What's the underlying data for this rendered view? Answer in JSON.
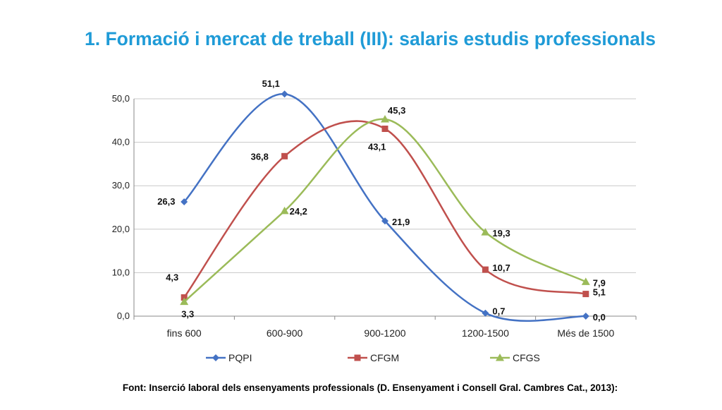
{
  "title": "1. Formació i mercat de treball (III): salaris estudis professionals",
  "source": "Font: Inserció laboral dels ensenyaments professionals (D. Ensenyament i Consell Gral. Cambres Cat., 2013):",
  "colors": {
    "title": "#1f9bd7",
    "PQPI": "#4472c4",
    "CFGM": "#c0504d",
    "CFGS": "#9bbb59",
    "grid": "#c8c8c8"
  },
  "chart_data": {
    "type": "line",
    "categories": [
      "fins 600",
      "600-900",
      "900-1200",
      "1200-1500",
      "Més de 1500"
    ],
    "ylim": [
      0,
      50
    ],
    "yticks": [
      "0,0",
      "10,0",
      "20,0",
      "30,0",
      "40,0",
      "50,0"
    ],
    "grid": true,
    "smooth": true,
    "legend": "bottom",
    "series": [
      {
        "name": "PQPI",
        "marker": "diamond",
        "values": [
          26.3,
          51.1,
          21.9,
          0.7,
          0.0
        ],
        "labels": [
          "26,3",
          "51,1",
          "21,9",
          "0,7",
          "0,0"
        ]
      },
      {
        "name": "CFGM",
        "marker": "square",
        "values": [
          4.3,
          36.8,
          43.1,
          10.7,
          5.1
        ],
        "labels": [
          "4,3",
          "36,8",
          "43,1",
          "10,7",
          "5,1"
        ]
      },
      {
        "name": "CFGS",
        "marker": "triangle",
        "values": [
          3.3,
          24.2,
          45.3,
          19.3,
          7.9
        ],
        "labels": [
          "3,3",
          "24,2",
          "45,3",
          "19,3",
          "7,9"
        ]
      }
    ]
  }
}
